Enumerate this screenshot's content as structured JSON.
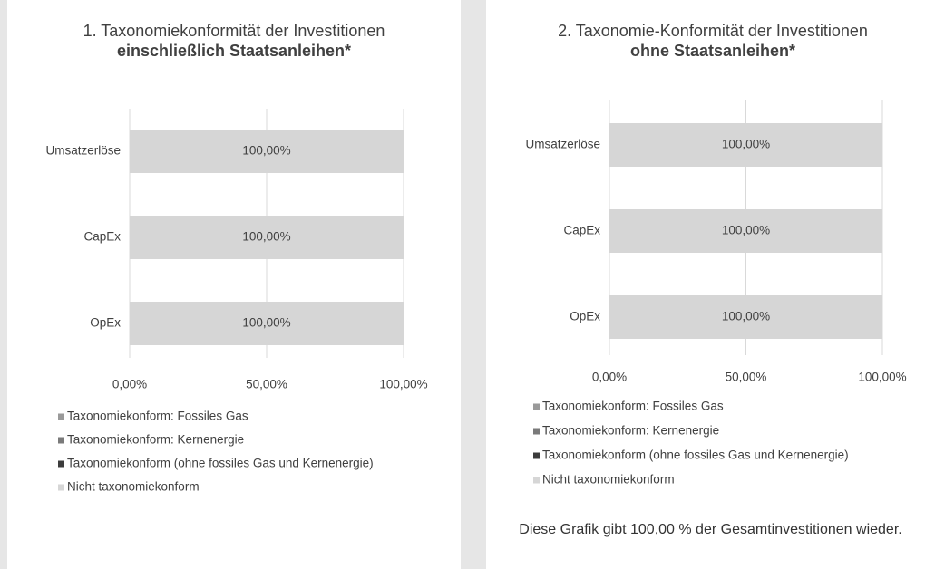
{
  "chart_data": [
    {
      "type": "bar",
      "orientation": "horizontal",
      "stacked": true,
      "title": "1. Taxonomiekonformität der Investitionen",
      "subtitle": "einschließlich Staatsanleihen*",
      "categories": [
        "Umsatzerlöse",
        "CapEx",
        "OpEx"
      ],
      "series": [
        {
          "name": "Taxonomiekonform: Fossiles Gas",
          "color": "#9a9a9a",
          "values": [
            0,
            0,
            0
          ]
        },
        {
          "name": "Taxonomiekonform: Kernenergie",
          "color": "#7a7a7a",
          "values": [
            0,
            0,
            0
          ]
        },
        {
          "name": "Taxonomiekonform (ohne fossiles Gas und Kernenergie)",
          "color": "#3c3c3c",
          "values": [
            0,
            0,
            0
          ]
        },
        {
          "name": "Nicht taxonomiekonform",
          "color": "#d6d6d6",
          "values": [
            100,
            100,
            100
          ],
          "value_labels": [
            "100,00%",
            "100,00%",
            "100,00%"
          ]
        }
      ],
      "xlim": [
        0,
        100
      ],
      "xticks": [
        {
          "value": 0,
          "label": "0,00%"
        },
        {
          "value": 50,
          "label": "50,00%"
        },
        {
          "value": 100,
          "label": "100,00%"
        }
      ],
      "grid": true,
      "legend": "bottom"
    },
    {
      "type": "bar",
      "orientation": "horizontal",
      "stacked": true,
      "title": "2. Taxonomie-Konformität der Investitionen",
      "subtitle": "ohne Staatsanleihen*",
      "categories": [
        "Umsatzerlöse",
        "CapEx",
        "OpEx"
      ],
      "series": [
        {
          "name": "Taxonomiekonform: Fossiles Gas",
          "color": "#9a9a9a",
          "values": [
            0,
            0,
            0
          ]
        },
        {
          "name": "Taxonomiekonform: Kernenergie",
          "color": "#7a7a7a",
          "values": [
            0,
            0,
            0
          ]
        },
        {
          "name": "Taxonomiekonform (ohne fossiles Gas und Kernenergie)",
          "color": "#3c3c3c",
          "values": [
            0,
            0,
            0
          ]
        },
        {
          "name": "Nicht taxonomiekonform",
          "color": "#d6d6d6",
          "values": [
            100,
            100,
            100
          ],
          "value_labels": [
            "100,00%",
            "100,00%",
            "100,00%"
          ]
        }
      ],
      "xlim": [
        0,
        100
      ],
      "xticks": [
        {
          "value": 0,
          "label": "0,00%"
        },
        {
          "value": 50,
          "label": "50,00%"
        },
        {
          "value": 100,
          "label": "100,00%"
        }
      ],
      "grid": true,
      "legend": "bottom",
      "note": "Diese Grafik gibt 100,00 % der Gesamtinvestitionen wieder."
    }
  ]
}
